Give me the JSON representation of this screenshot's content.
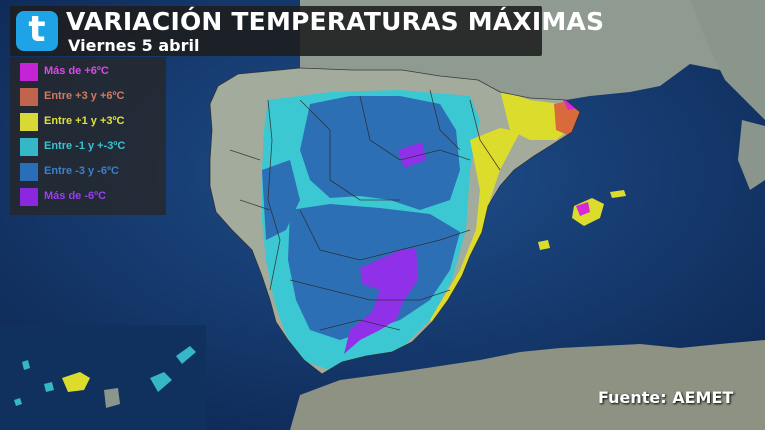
{
  "header": {
    "logo_letter": "t",
    "title": "VARIACIÓN TEMPERATURAS MÁXIMAS",
    "subtitle": "Viernes 5 abril"
  },
  "legend": {
    "items": [
      {
        "label": "Más de +6ºC",
        "color": "#c423d6",
        "text_color": "#d84ae8"
      },
      {
        "label": "Entre +3 y +6ºC",
        "color": "#c0644e",
        "text_color": "#d07a62"
      },
      {
        "label": "Entre +1 y +3ºC",
        "color": "#d8d838",
        "text_color": "#e0e03c"
      },
      {
        "label": "Entre -1 y +-3ºC",
        "color": "#35b7c8",
        "text_color": "#38c4d4"
      },
      {
        "label": "Entre -3 y -6ºC",
        "color": "#2a6db8",
        "text_color": "#3a7fd0"
      },
      {
        "label": "Más de -6ºC",
        "color": "#8a28e0",
        "text_color": "#9a3ef0"
      }
    ]
  },
  "source": "Fuente: AEMET",
  "colors": {
    "sea": "#163c72",
    "land": "#9aa59a",
    "plus6": "#d52ad6",
    "plus3": "#d86a3c",
    "plus1": "#dcdc2c",
    "minus1": "#3cc8d2",
    "minus3": "#2c6fb5",
    "minus6": "#9030e8"
  }
}
